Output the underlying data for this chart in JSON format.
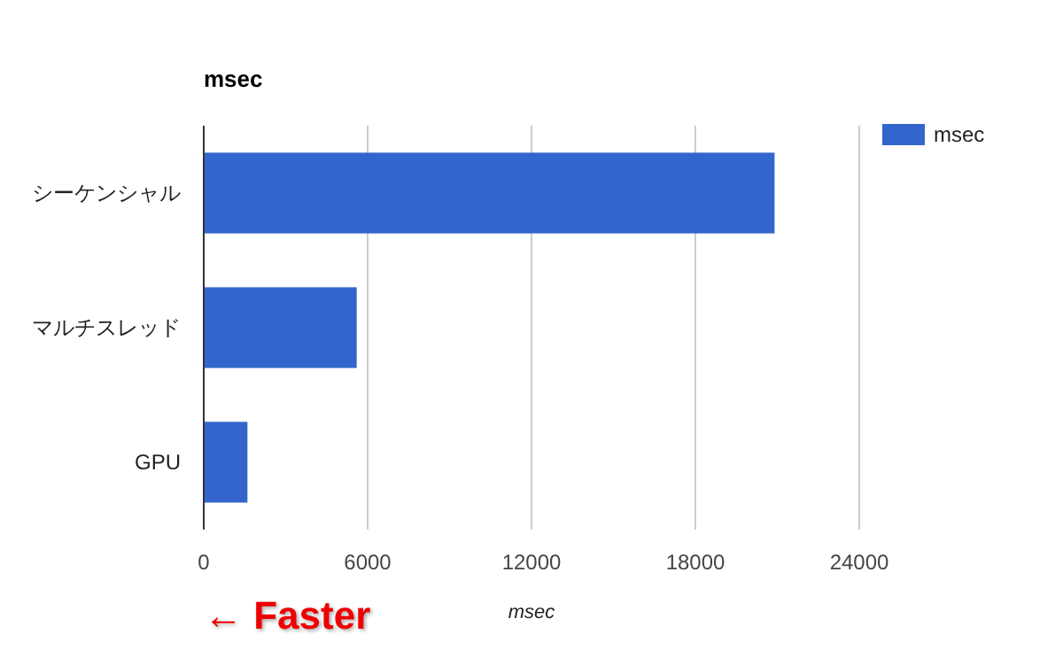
{
  "chart_data": {
    "type": "bar",
    "orientation": "horizontal",
    "title": "msec",
    "xlabel": "msec",
    "categories": [
      "シーケンシャル",
      "マルチスレッド",
      "GPU"
    ],
    "series": [
      {
        "name": "msec",
        "color": "#3366cc",
        "values": [
          20900,
          5600,
          1600
        ]
      }
    ],
    "xlim": [
      0,
      24000
    ],
    "xticks": [
      0,
      6000,
      12000,
      18000,
      24000
    ],
    "grid": "x",
    "legend": "top right",
    "annotations": [
      "← Faster"
    ]
  }
}
